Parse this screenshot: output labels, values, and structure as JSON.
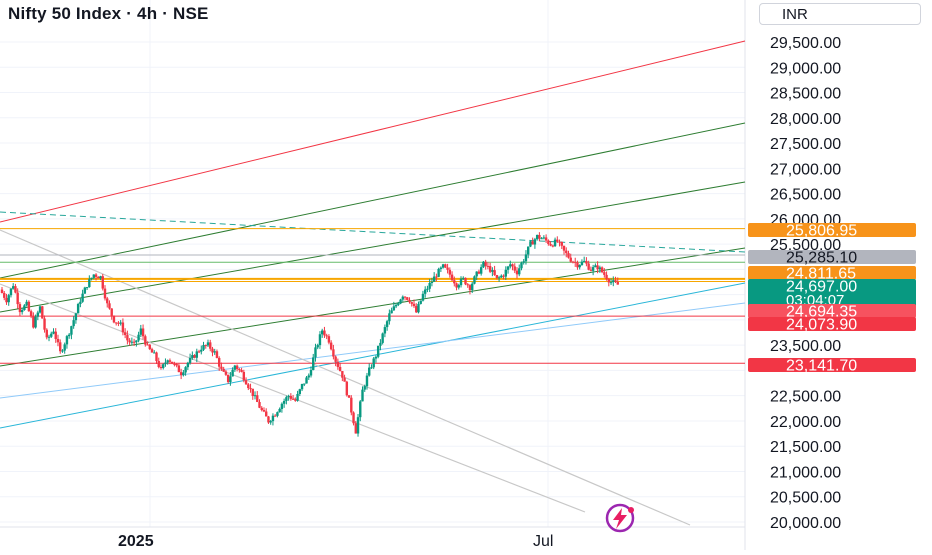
{
  "header": {
    "title": "Nifty 50 Index · 4h · NSE",
    "currency": "INR"
  },
  "colors": {
    "up": "#089981",
    "down": "#f23645",
    "grid": "#f0f3fa",
    "axis_text": "#131722",
    "price_tag": "#089981",
    "orange": "#f7931a",
    "gray_tag": "#b2b5be",
    "red_tag": "#f23645",
    "line_red": "#f23645",
    "line_green": "#2e7d32",
    "line_orange": "#f7a600",
    "line_teal_dash": "#26a69a",
    "line_cyan": "#29b6d8",
    "line_lightblue": "#90caf9",
    "line_gray": "#c8c8c8",
    "logo": "#9c27b0"
  },
  "chart_data": {
    "type": "candlestick",
    "title": "Nifty 50 Index · 4h · NSE",
    "timeframe": "4h",
    "exchange": "NSE",
    "currency": "INR",
    "y_range": [
      20000,
      30000
    ],
    "y_ticks": [
      "29,500.00",
      "29,000.00",
      "28,500.00",
      "28,000.00",
      "27,500.00",
      "27,000.00",
      "26,500.00",
      "26,000.00",
      "25,500.00",
      "23,500.00",
      "22,500.00",
      "22,000.00",
      "21,500.00",
      "21,000.00",
      "20,500.00",
      "20,000.00"
    ],
    "x_labels": [
      "2025",
      "Jul"
    ],
    "grid": true,
    "price_tags": [
      {
        "label": "25,806.95",
        "value": 25806.95,
        "style": "orange"
      },
      {
        "label": "25,285.10",
        "value": 25285.1,
        "style": "gray"
      },
      {
        "label": "24,811.65",
        "value": 24811.65,
        "style": "orange"
      },
      {
        "label": "24,697.00",
        "value": 24697.0,
        "style": "price",
        "countdown": "03:04:07"
      },
      {
        "label": "24,694.35",
        "value": 24694.35,
        "style": "red_light"
      },
      {
        "label": "24,073.90",
        "value": 24073.9,
        "style": "red"
      },
      {
        "label": "23,141.70",
        "value": 23141.7,
        "style": "red"
      }
    ],
    "horizontal_levels": [
      {
        "value": 25806.95,
        "color": "orange"
      },
      {
        "value": 25285.1,
        "color": "gray"
      },
      {
        "value": 25140,
        "color": "green"
      },
      {
        "value": 24811.65,
        "color": "orange"
      },
      {
        "value": 24760,
        "color": "orange"
      },
      {
        "value": 24073.9,
        "color": "red"
      },
      {
        "value": 23141.7,
        "color": "red"
      }
    ],
    "price_path": [
      [
        24600,
        24400,
        24700,
        24200,
        24300,
        23900,
        24250,
        23600,
        23800,
        23350,
        23650,
        24000,
        24400,
        24700,
        24900,
        24850,
        24300,
        24000,
        23900,
        23600,
        23500,
        23800,
        23450,
        23300,
        23000,
        23250,
        23100,
        22950,
        23150,
        23300,
        23450,
        23500,
        23350,
        23000,
        22800,
        23100,
        22950,
        22700,
        22450,
        22200,
        22000,
        22150,
        22350,
        22500,
        22400,
        22700,
        22900,
        23400,
        23800,
        23600,
        23200,
        22900,
        22400,
        21800,
        22600,
        23000,
        23300,
        23700,
        24100,
        24300,
        24500,
        24400,
        24150,
        24500,
        24700,
        24900,
        25050,
        24900,
        24700,
        24800,
        24650,
        24900,
        25100,
        25000,
        24800,
        24900,
        25100,
        24950,
        25200,
        25500,
        25650,
        25600,
        25500,
        25550,
        25350,
        25200,
        25100,
        25150,
        25000,
        25050,
        24900,
        24750,
        24697
      ]
    ]
  },
  "branding": {
    "logo_icon": "lightning-logo-icon"
  }
}
